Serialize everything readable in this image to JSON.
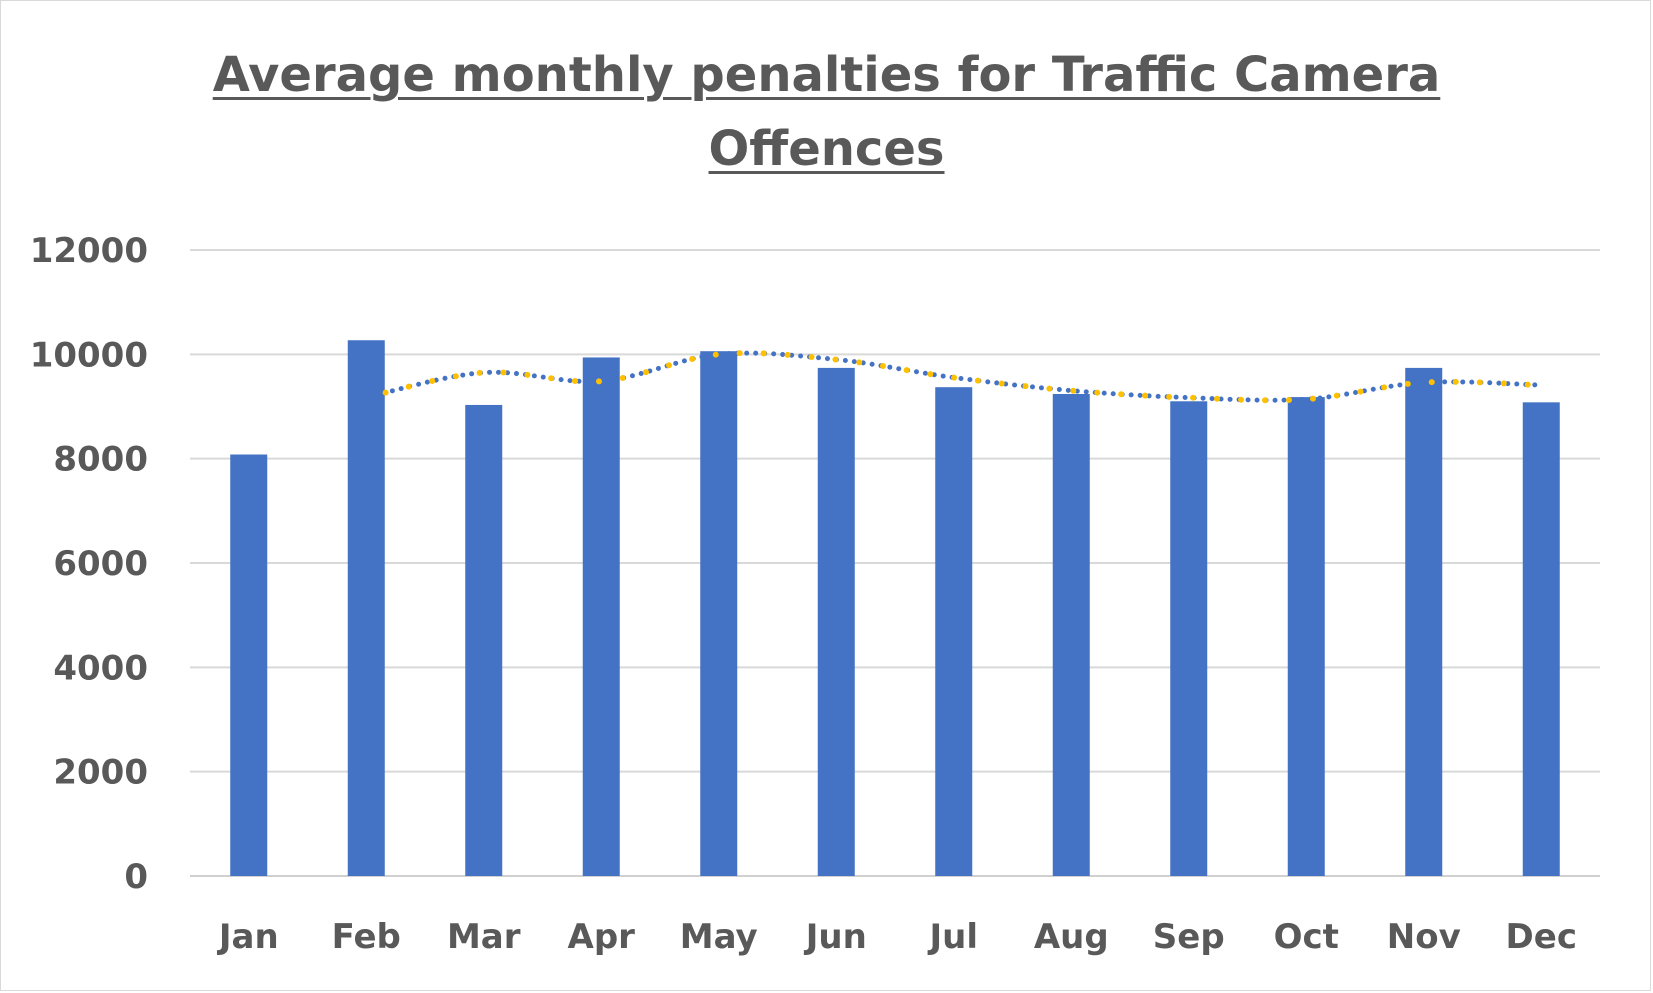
{
  "chart_data": {
    "type": "bar",
    "title_line1": "Average monthly penalties for Traffic Camera",
    "title_line2": "Offences",
    "categories": [
      "Jan",
      "Feb",
      "Mar",
      "Apr",
      "May",
      "Jun",
      "Jul",
      "Aug",
      "Sep",
      "Oct",
      "Nov",
      "Dec"
    ],
    "series": [
      {
        "values": [
          8080,
          10270,
          9030,
          9940,
          10060,
          9740,
          9370,
          9240,
          9100,
          9180,
          9740,
          9080
        ],
        "color": "#4472c4"
      }
    ],
    "moving_averages": [
      {
        "color": "#4472c4",
        "style": "dotted",
        "values": [
          null,
          9175,
          9650,
          9485,
          10000,
          9900,
          9555,
          9305,
          9170,
          9140,
          9460,
          9410
        ]
      },
      {
        "color": "#ffc000",
        "style": "dotted",
        "values": [
          null,
          9175,
          9650,
          9485,
          10000,
          9900,
          9555,
          9305,
          9170,
          9140,
          9460,
          9410
        ]
      }
    ],
    "ylim": [
      0,
      12000
    ],
    "yticks": [
      0,
      2000,
      4000,
      6000,
      8000,
      10000,
      12000
    ],
    "grid": true,
    "xlabel": "",
    "ylabel": ""
  }
}
